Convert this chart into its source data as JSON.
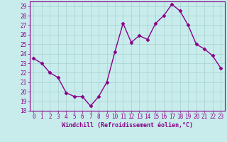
{
  "x": [
    0,
    1,
    2,
    3,
    4,
    5,
    6,
    7,
    8,
    9,
    10,
    11,
    12,
    13,
    14,
    15,
    16,
    17,
    18,
    19,
    20,
    21,
    22,
    23
  ],
  "y": [
    23.5,
    23.0,
    22.0,
    21.5,
    19.9,
    19.5,
    19.5,
    18.5,
    19.5,
    21.0,
    24.2,
    27.2,
    25.2,
    25.9,
    25.5,
    27.2,
    28.0,
    29.2,
    28.5,
    27.0,
    25.0,
    24.5,
    23.8,
    22.5
  ],
  "line_color": "#880088",
  "marker": "D",
  "markersize": 2.5,
  "linewidth": 1.0,
  "bg_color": "#c8ecec",
  "grid_color": "#a8d0d0",
  "tick_color": "#880088",
  "label_color": "#880088",
  "xlabel": "Windchill (Refroidissement éolien,°C)",
  "ylabel": "",
  "xlim": [
    -0.5,
    23.5
  ],
  "ylim": [
    18,
    29.5
  ],
  "yticks": [
    18,
    19,
    20,
    21,
    22,
    23,
    24,
    25,
    26,
    27,
    28,
    29
  ],
  "xticks": [
    0,
    1,
    2,
    3,
    4,
    5,
    6,
    7,
    8,
    9,
    10,
    11,
    12,
    13,
    14,
    15,
    16,
    17,
    18,
    19,
    20,
    21,
    22,
    23
  ],
  "xlabel_fontsize": 6.0,
  "tick_fontsize": 5.5
}
